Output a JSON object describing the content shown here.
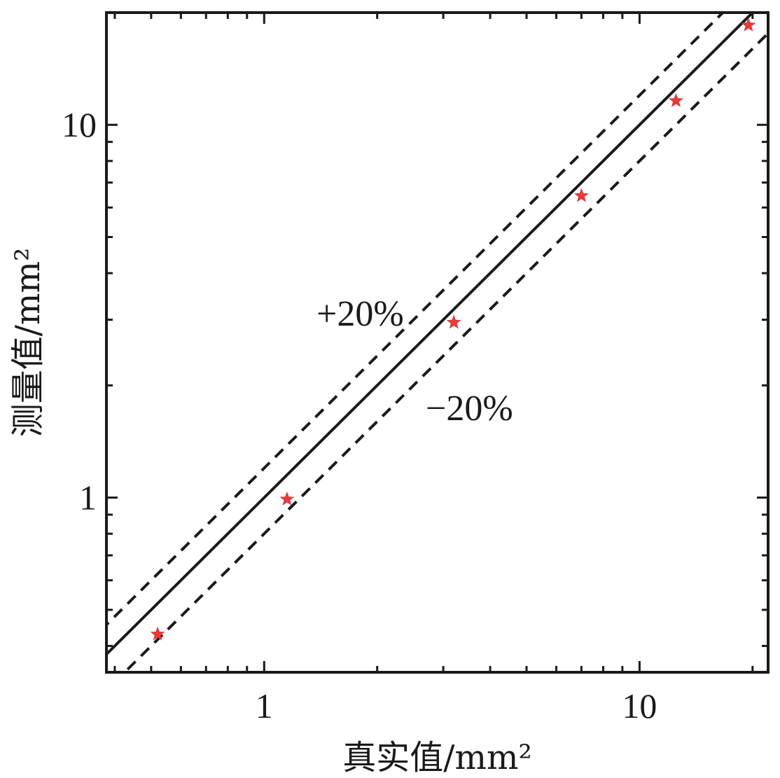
{
  "chart_data": {
    "type": "scatter",
    "title": "",
    "xlabel": "真实值/mm²",
    "ylabel": "测量值/mm²",
    "x_scale": "log",
    "y_scale": "log",
    "xlim": [
      0.38,
      22
    ],
    "ylim": [
      0.34,
      20
    ],
    "x_tick_labels": [
      {
        "value": 1,
        "label": "1"
      },
      {
        "value": 10,
        "label": "10"
      }
    ],
    "y_tick_labels": [
      {
        "value": 1,
        "label": "1"
      },
      {
        "value": 10,
        "label": "10"
      }
    ],
    "points": [
      {
        "x": 0.52,
        "y": 0.43
      },
      {
        "x": 1.15,
        "y": 0.99
      },
      {
        "x": 3.2,
        "y": 2.95
      },
      {
        "x": 7.0,
        "y": 6.45
      },
      {
        "x": 12.5,
        "y": 11.6
      },
      {
        "x": 19.5,
        "y": 18.5
      }
    ],
    "marker": "star",
    "marker_color": "#e8383a",
    "reference_lines": [
      {
        "style": "solid",
        "factor": 1.0
      },
      {
        "style": "dashed",
        "factor": 1.2,
        "label": "+20%"
      },
      {
        "style": "dashed",
        "factor": 0.8,
        "label": "−20%"
      }
    ],
    "grid": false,
    "legend": "none"
  }
}
